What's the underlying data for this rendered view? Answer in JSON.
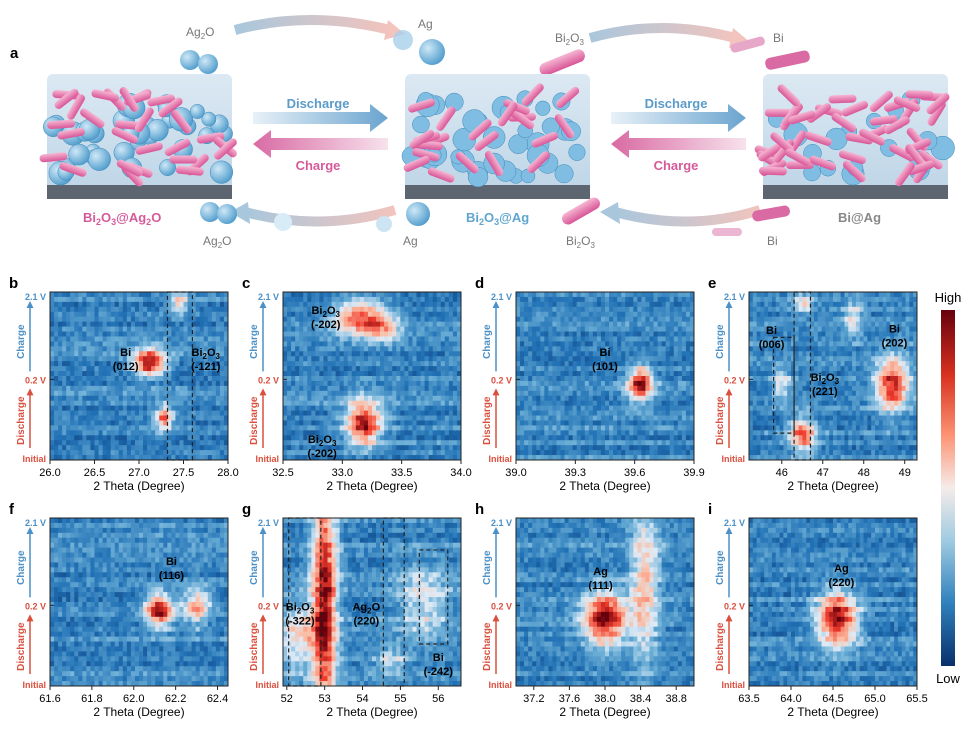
{
  "schematic": {
    "panel_letter": "a",
    "discharge_label": "Discharge",
    "charge_label": "Charge",
    "top_left_base": "Ag",
    "top_left_sub": "2",
    "top_left_tail": "O",
    "top_left_product": "Ag",
    "top_right_base": "Bi",
    "top_right_sub": "2",
    "top_right_tail": "O",
    "top_right_sub2": "3",
    "top_right_product": "Bi",
    "bottom_left_base": "Ag",
    "bottom_left_sub": "2",
    "bottom_left_tail": "O",
    "bottom_left_reactant": "Ag",
    "bottom_right_base": "Bi",
    "bottom_right_sub": "2",
    "bottom_right_tail": "O",
    "bottom_right_sub2": "3",
    "bottom_right_reactant": "Bi",
    "state1_base": "Bi",
    "state1_sub": "2",
    "state1_mid": "O",
    "state1_sub2": "3",
    "state1_tail": "@Ag",
    "state1_sub3": "2",
    "state1_end": "O",
    "state2_base": "Bi",
    "state2_sub": "2",
    "state2_mid": "O",
    "state2_sub2": "3",
    "state2_tail": "@Ag",
    "state3": "Bi@Ag",
    "colors": {
      "blue": "#5ea6cf",
      "pink": "#d65a9a",
      "panel_bg": "#cfe0ee"
    }
  },
  "common": {
    "xlabel": "2 Theta (Degree)",
    "y_top": "2.1 V",
    "y_mid": "0.2 V",
    "y_bottom": "Initial",
    "charge": "Charge",
    "discharge": "Discharge"
  },
  "colorbar": {
    "high": "High",
    "low": "Low"
  },
  "chart_data": [
    {
      "letter": "b",
      "type": "heatmap",
      "xlim": [
        26.0,
        28.0
      ],
      "xticks": [
        "26.0",
        "26.5",
        "27.0",
        "27.5",
        "28.0"
      ],
      "peaks": [
        {
          "x": 27.12,
          "t": 0.58,
          "w": 0.09,
          "h": 0.08,
          "amp": 1.0
        },
        {
          "x": 27.28,
          "t": 0.25,
          "w": 0.05,
          "h": 0.07,
          "amp": 0.8
        },
        {
          "x": 27.45,
          "t": 0.93,
          "w": 0.05,
          "h": 0.06,
          "amp": 0.6
        }
      ],
      "labels": [
        {
          "text": "Bi",
          "sub": "",
          "tail": "",
          "miller": "(012)",
          "x": 26.85,
          "t": 0.62
        },
        {
          "text": "Bi",
          "sub": "2",
          "tail": "O",
          "sub2": "3",
          "miller": "(-121)",
          "x": 27.75,
          "t": 0.62
        }
      ],
      "boxes": [
        {
          "x1": 27.32,
          "x2": 27.6,
          "t1": 0.0,
          "t2": 1.0
        }
      ]
    },
    {
      "letter": "c",
      "type": "heatmap",
      "xlim": [
        32.5,
        34.0
      ],
      "xticks": [
        "32.5",
        "33.0",
        "33.5",
        "34.0"
      ],
      "peaks": [
        {
          "x": 33.18,
          "t": 0.22,
          "w": 0.1,
          "h": 0.13,
          "amp": 1.0
        },
        {
          "x": 33.15,
          "t": 0.85,
          "w": 0.15,
          "h": 0.11,
          "amp": 0.75
        },
        {
          "x": 33.35,
          "t": 0.78,
          "w": 0.1,
          "h": 0.08,
          "amp": 0.4
        }
      ],
      "labels": [
        {
          "text": "Bi",
          "sub": "2",
          "tail": "O",
          "sub2": "3",
          "miller": "(-202)",
          "x": 32.86,
          "t": 0.87
        },
        {
          "text": "Bi",
          "sub": "2",
          "tail": "O",
          "sub2": "3",
          "miller": "(-202)",
          "x": 32.83,
          "t": 0.1
        }
      ],
      "boxes": []
    },
    {
      "letter": "d",
      "type": "heatmap",
      "xlim": [
        39.0,
        39.9
      ],
      "xticks": [
        "39.0",
        "39.3",
        "39.6",
        "39.9"
      ],
      "peaks": [
        {
          "x": 39.63,
          "t": 0.45,
          "w": 0.07,
          "h": 0.1,
          "amp": 1.0
        }
      ],
      "labels": [
        {
          "text": "Bi",
          "sub": "",
          "tail": "",
          "miller": "(101)",
          "x": 39.45,
          "t": 0.62
        }
      ],
      "boxes": []
    },
    {
      "letter": "e",
      "type": "heatmap",
      "xlim": [
        45.2,
        49.3
      ],
      "xticks": [
        "46",
        "47",
        "48",
        "49"
      ],
      "peaks": [
        {
          "x": 48.7,
          "t": 0.45,
          "w": 0.1,
          "h": 0.16,
          "amp": 0.9
        },
        {
          "x": 46.5,
          "t": 0.15,
          "w": 0.08,
          "h": 0.1,
          "amp": 0.8
        },
        {
          "x": 46.5,
          "t": 0.93,
          "w": 0.06,
          "h": 0.05,
          "amp": 0.5
        },
        {
          "x": 47.75,
          "t": 0.85,
          "w": 0.06,
          "h": 0.1,
          "amp": 0.4
        },
        {
          "x": 46.0,
          "t": 0.45,
          "w": 0.06,
          "h": 0.1,
          "amp": 0.4
        }
      ],
      "labels": [
        {
          "text": "Bi",
          "sub": "",
          "tail": "",
          "miller": "(006)",
          "x": 45.75,
          "t": 0.75
        },
        {
          "text": "Bi",
          "sub": "2",
          "tail": "O",
          "sub2": "3",
          "miller": "(221)",
          "x": 47.05,
          "t": 0.47
        },
        {
          "text": "Bi",
          "sub": "",
          "tail": "",
          "miller": "(202)",
          "x": 48.75,
          "t": 0.76
        }
      ],
      "boxes": [
        {
          "x1": 45.8,
          "x2": 46.3,
          "t1": 0.16,
          "t2": 0.73
        },
        {
          "x1": 46.3,
          "x2": 46.7,
          "t1": 0.0,
          "t2": 1.0
        }
      ]
    },
    {
      "letter": "f",
      "type": "heatmap",
      "xlim": [
        61.6,
        62.45
      ],
      "xticks": [
        "61.6",
        "61.8",
        "62.0",
        "62.2",
        "62.4"
      ],
      "peaks": [
        {
          "x": 62.12,
          "t": 0.45,
          "w": 0.08,
          "h": 0.1,
          "amp": 0.95
        },
        {
          "x": 62.3,
          "t": 0.48,
          "w": 0.08,
          "h": 0.12,
          "amp": 0.6
        }
      ],
      "labels": [
        {
          "text": "Bi",
          "sub": "",
          "tail": "",
          "miller": "(116)",
          "x": 62.18,
          "t": 0.72
        }
      ],
      "boxes": []
    },
    {
      "letter": "g",
      "type": "heatmap",
      "xlim": [
        51.9,
        56.6
      ],
      "xticks": [
        "52",
        "53",
        "54",
        "55",
        "56"
      ],
      "peaks": [
        {
          "x": 53.0,
          "t": 0.5,
          "w": 0.07,
          "h": 0.7,
          "amp": 1.0
        },
        {
          "x": 52.3,
          "t": 0.3,
          "w": 0.12,
          "h": 0.2,
          "amp": 0.45
        },
        {
          "x": 55.6,
          "t": 0.5,
          "w": 0.15,
          "h": 0.22,
          "amp": 0.4
        },
        {
          "x": 54.75,
          "t": 0.15,
          "w": 0.1,
          "h": 0.08,
          "amp": 0.3
        }
      ],
      "labels": [
        {
          "text": "Bi",
          "sub": "2",
          "tail": "O",
          "sub2": "3",
          "miller": "(-322)",
          "x": 52.35,
          "t": 0.45
        },
        {
          "text": "Ag",
          "sub": "2",
          "tail": "O",
          "sub2": "",
          "miller": "(220)",
          "x": 54.1,
          "t": 0.45
        },
        {
          "text": "Bi",
          "sub": "",
          "tail": "",
          "miller": "(-242)",
          "x": 56.0,
          "t": 0.15
        }
      ],
      "boxes": [
        {
          "x1": 52.05,
          "x2": 52.9,
          "t1": 0.0,
          "t2": 1.0
        },
        {
          "x1": 54.55,
          "x2": 55.1,
          "t1": 0.0,
          "t2": 1.0
        },
        {
          "x1": 55.5,
          "x2": 56.25,
          "t1": 0.25,
          "t2": 0.81
        }
      ]
    },
    {
      "letter": "h",
      "type": "heatmap",
      "xlim": [
        37.0,
        39.0
      ],
      "xticks": [
        "37.2",
        "37.6",
        "38.0",
        "38.4",
        "38.8"
      ],
      "peaks": [
        {
          "x": 38.0,
          "t": 0.4,
          "w": 0.12,
          "h": 0.16,
          "amp": 1.0
        },
        {
          "x": 38.45,
          "t": 0.6,
          "w": 0.08,
          "h": 0.45,
          "amp": 0.55
        }
      ],
      "labels": [
        {
          "text": "Ag",
          "sub": "",
          "tail": "",
          "miller": "(111)",
          "x": 37.95,
          "t": 0.66
        }
      ],
      "boxes": []
    },
    {
      "letter": "i",
      "type": "heatmap",
      "xlim": [
        63.5,
        65.5
      ],
      "xticks": [
        "63.5",
        "64.0",
        "64.5",
        "65.0",
        "65.5"
      ],
      "peaks": [
        {
          "x": 64.55,
          "t": 0.4,
          "w": 0.12,
          "h": 0.16,
          "amp": 1.0
        }
      ],
      "labels": [
        {
          "text": "Ag",
          "sub": "",
          "tail": "",
          "miller": "(220)",
          "x": 64.6,
          "t": 0.68
        }
      ],
      "boxes": []
    }
  ]
}
